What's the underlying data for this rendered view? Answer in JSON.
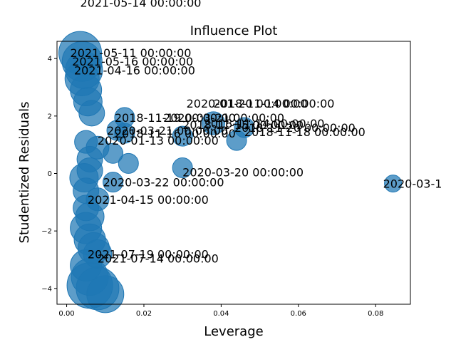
{
  "chart_data": {
    "type": "scatter",
    "title": "Influence Plot",
    "xlabel": "Leverage",
    "ylabel": "Studentized Residuals",
    "xlim": [
      -0.0025,
      0.089
    ],
    "ylim": [
      -4.55,
      4.6
    ],
    "xticks": [
      0.0,
      0.02,
      0.04,
      0.06,
      0.08
    ],
    "xtick_labels": [
      "0.00",
      "0.02",
      "0.04",
      "0.06",
      "0.08"
    ],
    "yticks": [
      -4,
      -2,
      0,
      2,
      4
    ],
    "ytick_labels": [
      "−4",
      "−2",
      "0",
      "2",
      "4"
    ],
    "grid": false,
    "marker_color": "#1f77b4",
    "points": [
      {
        "x": 0.0035,
        "y": 4.2,
        "size": 30,
        "label": "2021-05-11 00:00:00"
      },
      {
        "x": 0.004,
        "y": 3.9,
        "size": 28,
        "label": "2021-05-16 00:00:00"
      },
      {
        "x": 0.0045,
        "y": 3.6,
        "size": 26,
        "label": "2021-04-16 00:00:00"
      },
      {
        "x": 0.004,
        "y": 3.3,
        "size": 24,
        "label": ""
      },
      {
        "x": 0.005,
        "y": 2.9,
        "size": 22,
        "label": ""
      },
      {
        "x": 0.0055,
        "y": 2.5,
        "size": 20,
        "label": ""
      },
      {
        "x": 0.0065,
        "y": 2.1,
        "size": 18,
        "label": ""
      },
      {
        "x": 0.015,
        "y": 1.95,
        "size": 14,
        "label": "2018-11-19 00:00:00"
      },
      {
        "x": 0.038,
        "y": 1.75,
        "size": 16,
        "label": "2018-11-14 00:00:00"
      },
      {
        "x": 0.046,
        "y": 1.6,
        "size": 14,
        "label": "2018-11-20 00:00:00"
      },
      {
        "x": 0.013,
        "y": 1.5,
        "size": 14,
        "label": "2020-03-21 00:00:00"
      },
      {
        "x": 0.015,
        "y": 1.4,
        "size": 14,
        "label": "2018-11-16 00:00:00"
      },
      {
        "x": 0.03,
        "y": 1.3,
        "size": 14,
        "label": ""
      },
      {
        "x": 0.044,
        "y": 1.15,
        "size": 14,
        "label": ""
      },
      {
        "x": 0.005,
        "y": 1.1,
        "size": 16,
        "label": ""
      },
      {
        "x": 0.008,
        "y": 0.9,
        "size": 16,
        "label": ""
      },
      {
        "x": 0.012,
        "y": 0.7,
        "size": 14,
        "label": ""
      },
      {
        "x": 0.006,
        "y": 0.5,
        "size": 18,
        "label": ""
      },
      {
        "x": 0.016,
        "y": 0.35,
        "size": 14,
        "label": ""
      },
      {
        "x": 0.03,
        "y": 0.2,
        "size": 14,
        "label": ""
      },
      {
        "x": 0.006,
        "y": 0.1,
        "size": 18,
        "label": ""
      },
      {
        "x": 0.0045,
        "y": -0.15,
        "size": 20,
        "label": ""
      },
      {
        "x": 0.0845,
        "y": -0.35,
        "size": 12,
        "label": "2020-03-1"
      },
      {
        "x": 0.012,
        "y": -0.3,
        "size": 14,
        "label": "2020-03-22 00:00:00"
      },
      {
        "x": 0.005,
        "y": -0.6,
        "size": 18,
        "label": ""
      },
      {
        "x": 0.008,
        "y": -0.9,
        "size": 16,
        "label": "2021-04-15 00:00:00"
      },
      {
        "x": 0.005,
        "y": -1.2,
        "size": 18,
        "label": ""
      },
      {
        "x": 0.006,
        "y": -1.5,
        "size": 20,
        "label": ""
      },
      {
        "x": 0.005,
        "y": -1.9,
        "size": 22,
        "label": ""
      },
      {
        "x": 0.006,
        "y": -2.3,
        "size": 22,
        "label": ""
      },
      {
        "x": 0.007,
        "y": -2.6,
        "size": 22,
        "label": ""
      },
      {
        "x": 0.008,
        "y": -2.8,
        "size": 20,
        "label": "2021-07-19 00:00:00"
      },
      {
        "x": 0.005,
        "y": -3.2,
        "size": 22,
        "label": ""
      },
      {
        "x": 0.006,
        "y": -3.6,
        "size": 26,
        "label": ""
      },
      {
        "x": 0.006,
        "y": -3.9,
        "size": 32,
        "label": ""
      },
      {
        "x": 0.008,
        "y": -4.0,
        "size": 30,
        "label": ""
      },
      {
        "x": 0.01,
        "y": -4.2,
        "size": 26,
        "label": ""
      }
    ],
    "annotations": [
      {
        "text": "2021-05-14 00:00:00",
        "x": 0.0035,
        "y": 5.8
      },
      {
        "text": "2020-03-21 00:00:00",
        "x": 0.025,
        "y": 1.8
      },
      {
        "text": "2020-01-20 00:00:00",
        "x": 0.031,
        "y": 2.3
      },
      {
        "text": "2018-11-14 00:00:00",
        "x": 0.038,
        "y": 2.3
      },
      {
        "text": "2018-11-15 00:00:00",
        "x": 0.03,
        "y": 1.55
      },
      {
        "text": "2018-11-18 00:00:00",
        "x": 0.046,
        "y": 1.3
      },
      {
        "text": "2020-01-13 00:00:00",
        "x": 0.008,
        "y": 1.0
      },
      {
        "text": "2020-03-20 00:00:00",
        "x": 0.03,
        "y": -0.1
      },
      {
        "text": "2021-07-14 00:00:00",
        "x": 0.008,
        "y": -3.1
      }
    ]
  }
}
